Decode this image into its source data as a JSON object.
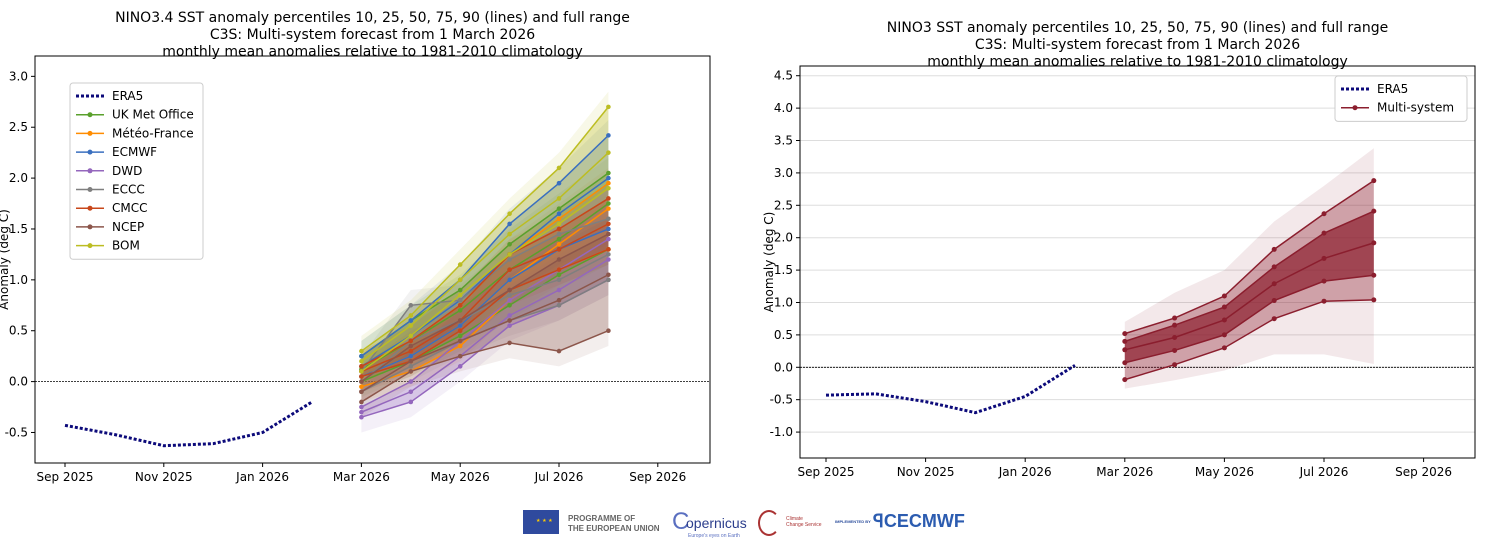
{
  "months": [
    "2025-09",
    "2025-10",
    "2025-11",
    "2025-12",
    "2026-01",
    "2026-02",
    "2026-03",
    "2026-04",
    "2026-05",
    "2026-06",
    "2026-07",
    "2026-08",
    "2026-09"
  ],
  "forecast_months": [
    "2026-03",
    "2026-04",
    "2026-05",
    "2026-06",
    "2026-07",
    "2026-08"
  ],
  "chart_data": [
    {
      "type": "line",
      "title": [
        "NINO3.4 SST anomaly percentiles 10, 25, 50, 75, 90 (lines) and full range",
        "C3S: Multi-system forecast from 1 March 2026",
        "monthly mean anomalies relative to 1981-2010 climatology"
      ],
      "ylabel": "Anomaly (deg C)",
      "xlabel": "",
      "ylim": [
        -0.8,
        3.2
      ],
      "yticks": [
        "-0.5",
        "0.0",
        "0.5",
        "1.0",
        "1.5",
        "2.0",
        "2.5",
        "3.0"
      ],
      "xticks": [
        "Sep 2025",
        "Nov 2025",
        "Jan 2026",
        "Mar 2026",
        "May 2026",
        "Jul 2026",
        "Sep 2026"
      ],
      "grid": false,
      "legend": "top-left",
      "era5": {
        "name": "ERA5",
        "color": "#0c0a7a",
        "x": [
          "2025-09",
          "2025-10",
          "2025-11",
          "2025-12",
          "2026-01",
          "2026-02"
        ],
        "values": [
          -0.43,
          -0.52,
          -0.63,
          -0.61,
          -0.5,
          -0.2
        ]
      },
      "series": [
        {
          "name": "UK Met Office",
          "color": "#5aa02c",
          "lines": [
            [
              0.0,
              0.2,
              0.45,
              0.75,
              1.05,
              1.3
            ],
            [
              0.12,
              0.4,
              0.7,
              1.1,
              1.4,
              1.75
            ],
            [
              0.25,
              0.6,
              0.9,
              1.35,
              1.7,
              2.05
            ]
          ]
        },
        {
          "name": "Météo-France",
          "color": "#ff8c00",
          "lines": [
            [
              -0.05,
              0.1,
              0.35,
              0.8,
              1.1,
              1.3
            ],
            [
              0.05,
              0.25,
              0.55,
              1.0,
              1.35,
              1.7
            ],
            [
              0.15,
              0.4,
              0.75,
              1.25,
              1.6,
              1.95
            ]
          ]
        },
        {
          "name": "ECMWF",
          "color": "#3a6fbf",
          "lines": [
            [
              0.05,
              0.25,
              0.55,
              1.0,
              1.3,
              1.5
            ],
            [
              0.15,
              0.45,
              0.8,
              1.25,
              1.65,
              2.0
            ],
            [
              0.25,
              0.6,
              1.0,
              1.55,
              1.95,
              2.42
            ]
          ]
        },
        {
          "name": "DWD",
          "color": "#9467bd",
          "lines": [
            [
              -0.35,
              -0.2,
              0.15,
              0.55,
              0.75,
              1.0
            ],
            [
              -0.3,
              -0.1,
              0.25,
              0.65,
              0.9,
              1.2
            ],
            [
              -0.25,
              0.0,
              0.4,
              0.8,
              1.1,
              1.4
            ]
          ]
        },
        {
          "name": "ECCC",
          "color": "#7f7f7f",
          "lines": [
            [
              -0.1,
              0.15,
              0.4,
              0.6,
              0.75,
              1.0
            ],
            [
              0.0,
              0.4,
              0.6,
              0.85,
              1.0,
              1.25
            ],
            [
              0.1,
              0.75,
              0.8,
              1.2,
              1.45,
              1.6
            ]
          ]
        },
        {
          "name": "CMCC",
          "color": "#c8471a",
          "lines": [
            [
              0.05,
              0.2,
              0.5,
              0.9,
              1.1,
              1.3
            ],
            [
              0.1,
              0.3,
              0.6,
              1.1,
              1.3,
              1.55
            ],
            [
              0.15,
              0.4,
              0.75,
              1.25,
              1.5,
              1.8
            ]
          ]
        },
        {
          "name": "NCEP",
          "color": "#8c564b",
          "lines": [
            [
              -0.2,
              0.1,
              0.25,
              0.38,
              0.3,
              0.5
            ],
            [
              -0.1,
              0.2,
              0.4,
              0.6,
              0.8,
              1.05
            ],
            [
              0.0,
              0.35,
              0.6,
              0.9,
              1.2,
              1.45
            ]
          ]
        },
        {
          "name": "BOM",
          "color": "#bcbd22",
          "lines": [
            [
              0.1,
              0.45,
              0.85,
              1.25,
              1.55,
              1.9
            ],
            [
              0.2,
              0.55,
              1.0,
              1.45,
              1.8,
              2.25
            ],
            [
              0.3,
              0.65,
              1.15,
              1.65,
              2.1,
              2.7
            ]
          ]
        }
      ]
    },
    {
      "type": "line",
      "title": [
        "NINO3 SST anomaly percentiles 10, 25, 50, 75, 90 (lines) and full range",
        "C3S: Multi-system forecast from 1 March 2026",
        "monthly mean anomalies relative to 1981-2010 climatology"
      ],
      "ylabel": "Anomaly (deg C)",
      "xlabel": "",
      "ylim": [
        -1.4,
        4.65
      ],
      "yticks": [
        "-1.0",
        "-0.5",
        "0.0",
        "0.5",
        "1.0",
        "1.5",
        "2.0",
        "2.5",
        "3.0",
        "3.5",
        "4.0",
        "4.5"
      ],
      "xticks": [
        "Sep 2025",
        "Nov 2025",
        "Jan 2026",
        "Mar 2026",
        "May 2026",
        "Jul 2026",
        "Sep 2026"
      ],
      "grid": true,
      "legend": "top-right",
      "era5": {
        "name": "ERA5",
        "color": "#0c0a7a",
        "x": [
          "2025-09",
          "2025-10",
          "2025-11",
          "2025-12",
          "2026-01",
          "2026-02"
        ],
        "values": [
          -0.43,
          -0.41,
          -0.53,
          -0.7,
          -0.45,
          0.03
        ]
      },
      "multi": {
        "name": "Multi-system",
        "color": "#8b1e2e",
        "p10": [
          -0.19,
          0.04,
          0.3,
          0.75,
          1.02,
          1.04
        ],
        "p25": [
          0.07,
          0.26,
          0.5,
          1.03,
          1.33,
          1.42
        ],
        "p50": [
          0.27,
          0.46,
          0.73,
          1.29,
          1.68,
          1.92
        ],
        "p75": [
          0.4,
          0.65,
          0.93,
          1.55,
          2.07,
          2.41
        ],
        "p90": [
          0.52,
          0.76,
          1.1,
          1.82,
          2.37,
          2.88
        ],
        "min": [
          -0.33,
          -0.2,
          -0.05,
          0.2,
          0.2,
          0.05
        ],
        "max": [
          0.7,
          1.15,
          1.5,
          2.25,
          2.8,
          3.38
        ]
      }
    }
  ],
  "footer": {
    "eu_text_1": "PROGRAMME OF",
    "eu_text_2": "THE EUROPEAN UNION",
    "copernicus": "opernicus",
    "copernicus_tag": "Europe's eyes on Earth",
    "c3s_1": "Climate",
    "c3s_2": "Change Service",
    "implemented_by": "IMPLEMENTED BY",
    "ecmwf": "ECMWF"
  }
}
